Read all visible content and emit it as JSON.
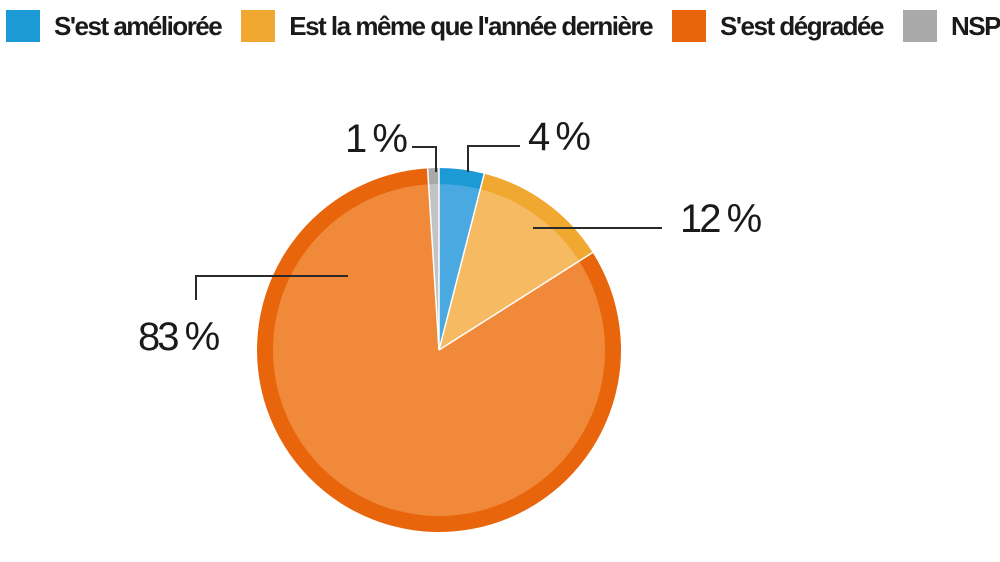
{
  "chart_data": {
    "type": "pie",
    "slices": [
      {
        "label": "S'est améliorée",
        "value": 4,
        "display": "4 %",
        "color": "#1b9ad6",
        "inner_color": "#4aa9e0"
      },
      {
        "label": "Est la même que l'année dernière",
        "value": 12,
        "display": "12 %",
        "color": "#f0a830",
        "inner_color": "#f6bb62"
      },
      {
        "label": "S'est dégradée",
        "value": 83,
        "display": "83 %",
        "color": "#e8650b",
        "inner_color": "#f0893a"
      },
      {
        "label": "NSP",
        "value": 1,
        "display": "1 %",
        "color": "#a9a9a9",
        "inner_color": "#c3c3c3"
      }
    ],
    "legend_position": "top"
  }
}
